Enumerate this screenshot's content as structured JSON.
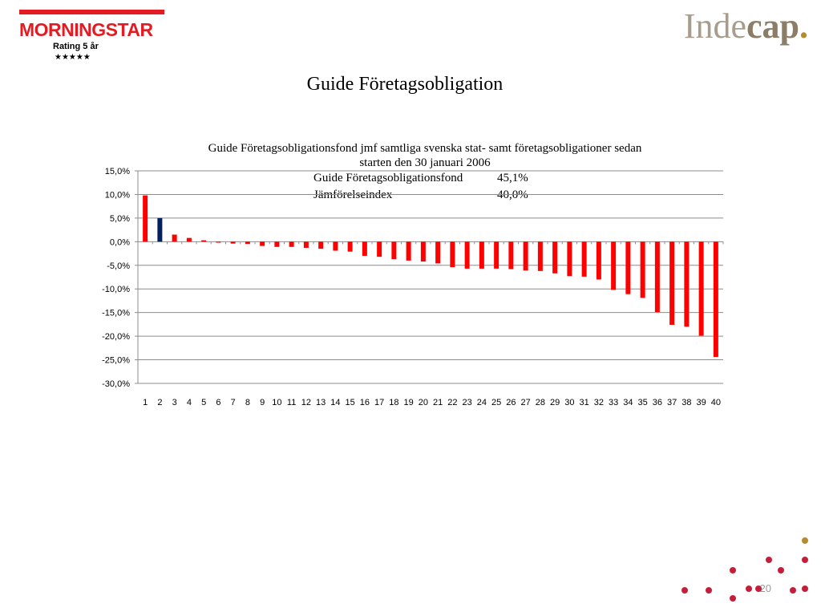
{
  "branding": {
    "morningstar_logo": "MORNINGSTAR",
    "rating_label": "Rating 5 år",
    "rating_stars": 5,
    "rating_stars_glyphs": "★★★★★",
    "indecap_logo_light": "Inde",
    "indecap_logo_bold": "cap",
    "indecap_logo_dot": "."
  },
  "slide": {
    "title": "Guide Företagsobligation",
    "page_number": "20"
  },
  "colors": {
    "bar_default": "#ff0000",
    "bar_highlight": "#002060",
    "morningstar_red": "#e31b23",
    "indecap_gray": "#a79d8c",
    "deco_red": "#c41e3a",
    "deco_gold": "#b58b2b"
  },
  "chart_data": {
    "type": "bar",
    "title_line1": "Guide Företagsobligationsfond jmf samtliga svenska stat- samt företagsobligationer sedan",
    "title_line2": "starten den 30 januari 2006",
    "annotations": [
      {
        "label": "Guide Företagsobligationsfond",
        "value": "45,1%"
      },
      {
        "label": "Jämförelseindex",
        "value": "40,0%"
      }
    ],
    "categories": [
      "1",
      "2",
      "3",
      "4",
      "5",
      "6",
      "7",
      "8",
      "9",
      "10",
      "11",
      "12",
      "13",
      "14",
      "15",
      "16",
      "17",
      "18",
      "19",
      "20",
      "21",
      "22",
      "23",
      "24",
      "25",
      "26",
      "27",
      "28",
      "29",
      "30",
      "31",
      "32",
      "33",
      "34",
      "35",
      "36",
      "37",
      "38",
      "39",
      "40"
    ],
    "values": [
      9.8,
      5.0,
      1.5,
      0.8,
      0.3,
      -0.2,
      -0.4,
      -0.5,
      -0.9,
      -1.1,
      -1.1,
      -1.3,
      -1.5,
      -1.9,
      -2.1,
      -3.0,
      -3.2,
      -3.7,
      -4.0,
      -4.2,
      -4.6,
      -5.4,
      -5.7,
      -5.7,
      -5.7,
      -5.8,
      -6.1,
      -6.2,
      -6.7,
      -7.3,
      -7.4,
      -8.0,
      -10.2,
      -11.1,
      -11.9,
      -14.9,
      -17.6,
      -18.0,
      -19.9,
      -24.4
    ],
    "highlight_index": 1,
    "ylim": [
      -30,
      15
    ],
    "yticks": [
      15,
      10,
      5,
      0,
      -5,
      -10,
      -15,
      -20,
      -25,
      -30
    ],
    "ytick_labels": [
      "15,0%",
      "10,0%",
      "5,0%",
      "0,0%",
      "-5,0%",
      "-10,0%",
      "-15,0%",
      "-20,0%",
      "-25,0%",
      "-30,0%"
    ],
    "grid": true,
    "xlabel": "",
    "ylabel": ""
  }
}
